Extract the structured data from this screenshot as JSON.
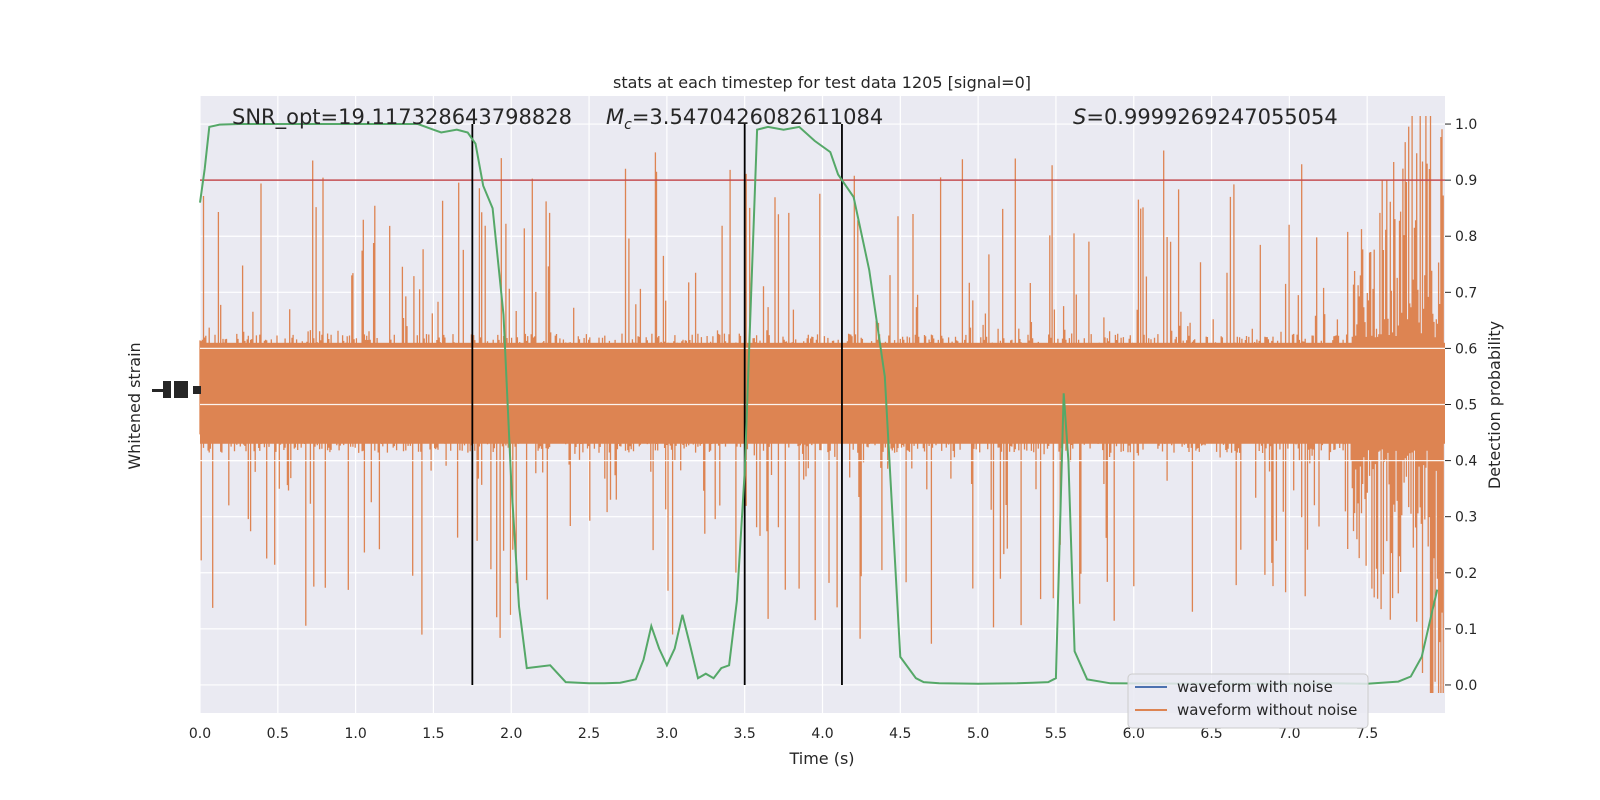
{
  "chart_data": {
    "type": "line",
    "title": "stats at each timestep for test data 1205 [signal=0]",
    "annotations": [
      {
        "text": "SNR_opt=19.117328643798828"
      },
      {
        "symbol": "M",
        "sub": "c",
        "text": "=3.5470426082611084"
      },
      {
        "symbol": "S",
        "text": "=0.9999269247055054"
      }
    ],
    "xlabel": "Time (s)",
    "ylabel_left": "Whitened strain",
    "ylabel_right": "Detection probability",
    "xlim": [
      0.0,
      8.0
    ],
    "ylim_right": [
      -0.05,
      1.05
    ],
    "xticks": [
      "0.0",
      "0.5",
      "1.0",
      "1.5",
      "2.0",
      "2.5",
      "3.0",
      "3.5",
      "4.0",
      "4.5",
      "5.0",
      "5.5",
      "6.0",
      "6.5",
      "7.0",
      "7.5"
    ],
    "yticks_right": [
      "0.0",
      "0.1",
      "0.2",
      "0.3",
      "0.4",
      "0.5",
      "0.6",
      "0.7",
      "0.8",
      "0.9",
      "1.0"
    ],
    "threshold": 0.9,
    "vlines": [
      1.75,
      3.5,
      4.125
    ],
    "grid": true,
    "legend": {
      "placement": "lower-right",
      "entries": [
        {
          "label": "waveform with noise",
          "color": "#4c72b0"
        },
        {
          "label": "waveform without noise",
          "color": "#dd8452"
        }
      ]
    },
    "series": [
      {
        "name": "waveform with noise",
        "color": "#4c72b0",
        "note_values": "dense noise band centered near 0.5 on the probability scale"
      },
      {
        "name": "waveform without noise",
        "color": "#dd8452",
        "band_center": 0.52,
        "core_halfwidth": 0.1,
        "spike_top": 0.85,
        "spike_bottom": 0.18,
        "chirp_start": 7.4
      },
      {
        "name": "Detection probability",
        "color": "#55a868",
        "x": [
          0.0,
          0.03,
          0.06,
          0.125,
          0.25,
          0.5,
          0.75,
          1.0,
          1.25,
          1.4,
          1.5,
          1.55,
          1.65,
          1.72,
          1.77,
          1.82,
          1.88,
          1.95,
          2.0,
          2.05,
          2.1,
          2.25,
          2.35,
          2.5,
          2.6,
          2.7,
          2.8,
          2.85,
          2.9,
          2.95,
          3.0,
          3.05,
          3.1,
          3.15,
          3.2,
          3.25,
          3.3,
          3.35,
          3.4,
          3.45,
          3.5,
          3.58,
          3.65,
          3.75,
          3.85,
          3.95,
          4.05,
          4.1,
          4.15,
          4.2,
          4.3,
          4.4,
          4.5,
          4.6,
          4.65,
          4.75,
          5.0,
          5.25,
          5.35,
          5.45,
          5.5,
          5.55,
          5.58,
          5.62,
          5.7,
          5.85,
          6.5,
          6.75,
          7.0,
          7.25,
          7.5,
          7.7,
          7.78,
          7.85,
          7.95
        ],
        "values": [
          0.86,
          0.92,
          0.995,
          0.999,
          1.0,
          1.0,
          1.0,
          1.0,
          1.0,
          1.0,
          0.99,
          0.985,
          0.99,
          0.985,
          0.965,
          0.89,
          0.85,
          0.66,
          0.36,
          0.14,
          0.03,
          0.035,
          0.005,
          0.003,
          0.003,
          0.004,
          0.01,
          0.045,
          0.105,
          0.065,
          0.035,
          0.065,
          0.125,
          0.07,
          0.012,
          0.02,
          0.012,
          0.03,
          0.035,
          0.15,
          0.38,
          0.99,
          0.995,
          0.99,
          0.995,
          0.97,
          0.95,
          0.91,
          0.89,
          0.87,
          0.74,
          0.55,
          0.05,
          0.012,
          0.005,
          0.003,
          0.002,
          0.003,
          0.004,
          0.005,
          0.012,
          0.52,
          0.4,
          0.06,
          0.01,
          0.003,
          0.002,
          0.002,
          0.002,
          0.003,
          0.002,
          0.006,
          0.015,
          0.05,
          0.17
        ]
      }
    ]
  }
}
